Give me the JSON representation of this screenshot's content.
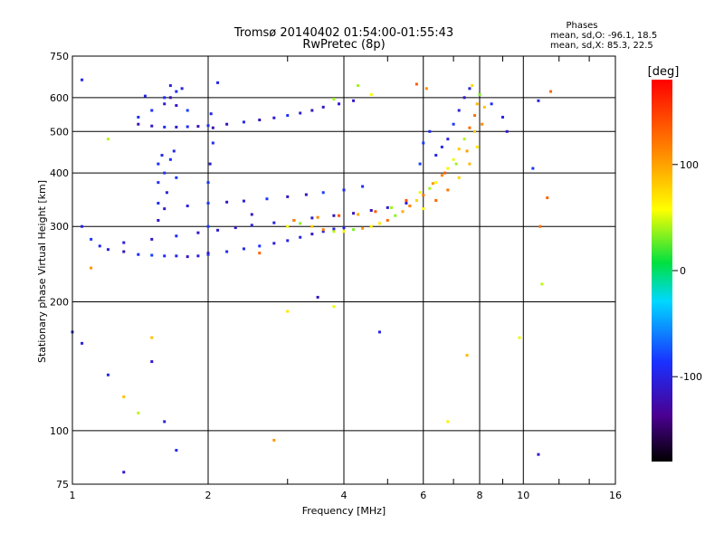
{
  "chart_data": {
    "type": "scatter",
    "title": "Tromsø 20140402 01:54:00-01:55:43",
    "subtitle": "RwPretec (8p)",
    "xlabel": "Frequency [MHz]",
    "ylabel": "Stationary phase Virtual Height [km]",
    "xscale": "log2",
    "yscale": "log",
    "xlim": [
      1,
      16
    ],
    "ylim": [
      75,
      750
    ],
    "x_ticks": [
      1,
      2,
      4,
      6,
      8,
      10,
      16
    ],
    "x_minor_ticks": [
      3,
      5,
      7,
      9,
      12,
      14
    ],
    "y_ticks": [
      75,
      100,
      200,
      300,
      400,
      500,
      600,
      750
    ],
    "grid": true,
    "legend": {
      "title": "Phases",
      "line1": "mean, sd,O: -96.1, 18.5",
      "line2": "mean, sd,X:  85.3, 22.5"
    },
    "colorbar": {
      "label": "[deg]",
      "range": [
        -180,
        180
      ],
      "ticks": [
        "100",
        "0",
        "-100"
      ],
      "tick_values": [
        100,
        0,
        -100
      ]
    },
    "series": [
      {
        "mode": "O",
        "points": [
          [
            1.05,
            300
          ],
          [
            1.1,
            280
          ],
          [
            1.15,
            270
          ],
          [
            1.2,
            265
          ],
          [
            1.3,
            262
          ],
          [
            1.4,
            258
          ],
          [
            1.5,
            257
          ],
          [
            1.6,
            256
          ],
          [
            1.7,
            256
          ],
          [
            1.8,
            255
          ],
          [
            1.9,
            256
          ],
          [
            2.0,
            258
          ],
          [
            2.2,
            262
          ],
          [
            2.4,
            266
          ],
          [
            2.6,
            270
          ],
          [
            2.8,
            274
          ],
          [
            3.0,
            278
          ],
          [
            3.2,
            283
          ],
          [
            3.4,
            288
          ],
          [
            3.6,
            292
          ],
          [
            3.8,
            296
          ],
          [
            4.0,
            298
          ],
          [
            1.3,
            275
          ],
          [
            1.5,
            280
          ],
          [
            1.7,
            285
          ],
          [
            1.9,
            290
          ],
          [
            2.1,
            294
          ],
          [
            2.3,
            298
          ],
          [
            2.5,
            302
          ],
          [
            2.8,
            306
          ],
          [
            3.1,
            310
          ],
          [
            3.4,
            314
          ],
          [
            3.8,
            318
          ],
          [
            4.2,
            322
          ],
          [
            4.6,
            327
          ],
          [
            5.0,
            332
          ],
          [
            5.5,
            340
          ],
          [
            1.6,
            330
          ],
          [
            1.8,
            335
          ],
          [
            2.0,
            340
          ],
          [
            2.2,
            342
          ],
          [
            2.4,
            344
          ],
          [
            2.7,
            348
          ],
          [
            3.0,
            352
          ],
          [
            3.3,
            356
          ],
          [
            3.6,
            360
          ],
          [
            4.0,
            365
          ],
          [
            4.4,
            372
          ],
          [
            1.55,
            310
          ],
          [
            1.55,
            340
          ],
          [
            1.55,
            380
          ],
          [
            1.55,
            420
          ],
          [
            1.58,
            440
          ],
          [
            1.6,
            400
          ],
          [
            1.62,
            360
          ],
          [
            1.65,
            430
          ],
          [
            1.68,
            450
          ],
          [
            1.7,
            390
          ],
          [
            2.0,
            260
          ],
          [
            2.0,
            300
          ],
          [
            2.0,
            340
          ],
          [
            2.0,
            380
          ],
          [
            2.02,
            420
          ],
          [
            2.05,
            470
          ],
          [
            2.05,
            510
          ],
          [
            2.03,
            550
          ],
          [
            1.4,
            520
          ],
          [
            1.5,
            515
          ],
          [
            1.6,
            512
          ],
          [
            1.7,
            512
          ],
          [
            1.8,
            513
          ],
          [
            1.9,
            514
          ],
          [
            2.0,
            516
          ],
          [
            2.2,
            520
          ],
          [
            2.4,
            526
          ],
          [
            2.6,
            532
          ],
          [
            2.8,
            538
          ],
          [
            3.0,
            545
          ],
          [
            3.2,
            552
          ],
          [
            3.4,
            560
          ],
          [
            3.6,
            570
          ],
          [
            3.9,
            580
          ],
          [
            4.2,
            590
          ],
          [
            1.4,
            540
          ],
          [
            1.5,
            560
          ],
          [
            1.6,
            580
          ],
          [
            1.65,
            600
          ],
          [
            1.7,
            620
          ],
          [
            1.75,
            630
          ],
          [
            1.65,
            640
          ],
          [
            1.7,
            575
          ],
          [
            1.8,
            560
          ],
          [
            1.6,
            600
          ],
          [
            5.9,
            420
          ],
          [
            6.0,
            470
          ],
          [
            6.2,
            500
          ],
          [
            6.4,
            440
          ],
          [
            6.6,
            460
          ],
          [
            6.8,
            480
          ],
          [
            7.0,
            520
          ],
          [
            7.2,
            560
          ],
          [
            7.4,
            600
          ],
          [
            7.6,
            630
          ],
          [
            8.5,
            580
          ],
          [
            9.0,
            540
          ],
          [
            9.2,
            500
          ],
          [
            1.0,
            170
          ],
          [
            1.05,
            160
          ],
          [
            1.2,
            135
          ],
          [
            1.5,
            145
          ],
          [
            1.6,
            105
          ],
          [
            1.7,
            90
          ],
          [
            1.3,
            80
          ],
          [
            3.5,
            205
          ],
          [
            2.5,
            320
          ],
          [
            4.8,
            170
          ],
          [
            10.8,
            88
          ],
          [
            10.8,
            590
          ],
          [
            10.5,
            410
          ],
          [
            1.05,
            660
          ],
          [
            1.45,
            605
          ],
          [
            2.1,
            650
          ]
        ]
      },
      {
        "mode": "X",
        "points": [
          [
            3.0,
            300
          ],
          [
            3.2,
            305
          ],
          [
            3.4,
            300
          ],
          [
            3.6,
            295
          ],
          [
            3.8,
            292
          ],
          [
            4.0,
            292
          ],
          [
            4.2,
            295
          ],
          [
            4.4,
            297
          ],
          [
            4.6,
            300
          ],
          [
            4.8,
            305
          ],
          [
            5.0,
            310
          ],
          [
            5.2,
            318
          ],
          [
            5.4,
            325
          ],
          [
            5.6,
            335
          ],
          [
            5.8,
            345
          ],
          [
            6.0,
            355
          ],
          [
            6.2,
            368
          ],
          [
            6.4,
            380
          ],
          [
            6.6,
            395
          ],
          [
            6.8,
            410
          ],
          [
            7.0,
            430
          ],
          [
            7.2,
            455
          ],
          [
            7.4,
            480
          ],
          [
            7.6,
            510
          ],
          [
            7.8,
            545
          ],
          [
            7.9,
            580
          ],
          [
            8.0,
            610
          ],
          [
            3.1,
            310
          ],
          [
            3.5,
            315
          ],
          [
            3.9,
            318
          ],
          [
            4.3,
            320
          ],
          [
            4.7,
            325
          ],
          [
            5.1,
            332
          ],
          [
            5.5,
            345
          ],
          [
            5.9,
            360
          ],
          [
            6.3,
            378
          ],
          [
            6.7,
            400
          ],
          [
            7.1,
            420
          ],
          [
            7.5,
            450
          ],
          [
            7.8,
            500
          ],
          [
            6.0,
            330
          ],
          [
            6.4,
            345
          ],
          [
            6.8,
            365
          ],
          [
            7.2,
            390
          ],
          [
            7.6,
            420
          ],
          [
            7.9,
            460
          ],
          [
            8.1,
            520
          ],
          [
            8.2,
            570
          ],
          [
            7.7,
            640
          ],
          [
            6.1,
            630
          ],
          [
            5.8,
            645
          ],
          [
            3.8,
            595
          ],
          [
            4.6,
            610
          ],
          [
            4.3,
            640
          ],
          [
            1.1,
            240
          ],
          [
            1.3,
            120
          ],
          [
            1.4,
            110
          ],
          [
            1.5,
            165
          ],
          [
            2.6,
            260
          ],
          [
            2.8,
            95
          ],
          [
            3.0,
            190
          ],
          [
            3.8,
            195
          ],
          [
            9.8,
            165
          ],
          [
            10.9,
            300
          ],
          [
            11.3,
            350
          ],
          [
            11.5,
            620
          ],
          [
            11.0,
            220
          ],
          [
            6.8,
            105
          ],
          [
            7.5,
            150
          ],
          [
            1.2,
            480
          ]
        ]
      }
    ]
  }
}
